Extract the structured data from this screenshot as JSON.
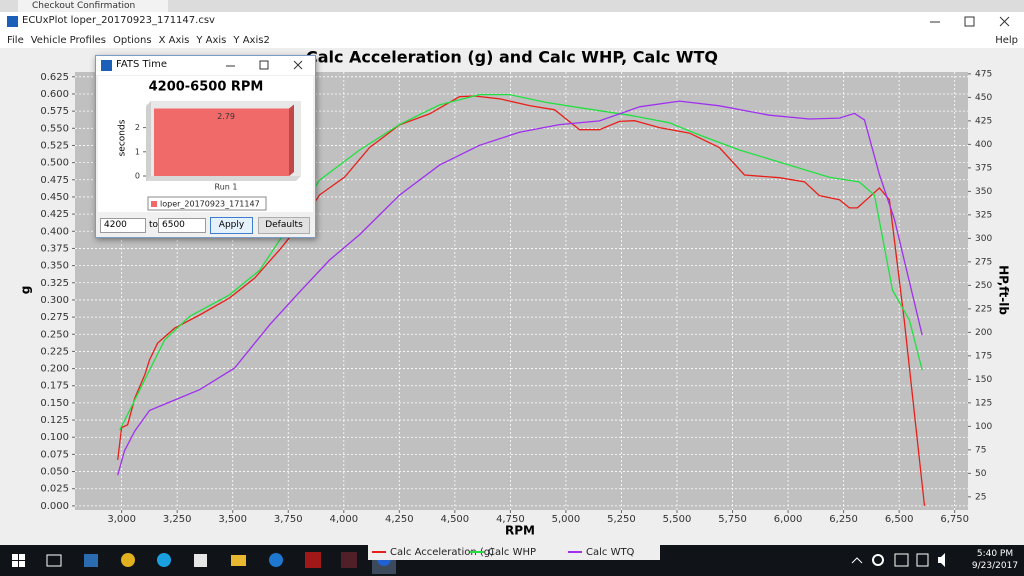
{
  "window": {
    "tab": "Checkout Confirmation",
    "title": "ECUxPlot loper_20170923_171147.csv"
  },
  "menu": [
    "File",
    "Vehicle Profiles",
    "Options",
    "X Axis",
    "Y Axis",
    "Y Axis2",
    "Help"
  ],
  "dialog": {
    "title": "FATS Time",
    "from": "4200",
    "to_label": "to",
    "to": "6500",
    "apply": "Apply",
    "defaults": "Defaults"
  },
  "taskbar": {
    "time": "5:40 PM",
    "date": "9/23/2017"
  },
  "chart_data": [
    {
      "type": "line",
      "title": "Calc Acceleration (g) and Calc WHP, Calc WTQ",
      "xlabel": "RPM",
      "ylabel": "g",
      "y2label": "HP,ft-lb",
      "grid": true,
      "xlim": [
        2790,
        6810
      ],
      "ylim": [
        -0.006,
        0.632
      ],
      "y2lim": [
        11,
        477
      ],
      "xticks": [
        {
          "value": 3000,
          "label": "3,000"
        },
        {
          "value": 3250,
          "label": "3,250"
        },
        {
          "value": 3500,
          "label": "3,500"
        },
        {
          "value": 3750,
          "label": "3,750"
        },
        {
          "value": 4000,
          "label": "4,000"
        },
        {
          "value": 4250,
          "label": "4,250"
        },
        {
          "value": 4500,
          "label": "4,500"
        },
        {
          "value": 4750,
          "label": "4,750"
        },
        {
          "value": 5000,
          "label": "5,000"
        },
        {
          "value": 5250,
          "label": "5,250"
        },
        {
          "value": 5500,
          "label": "5,500"
        },
        {
          "value": 5750,
          "label": "5,750"
        },
        {
          "value": 6000,
          "label": "6,000"
        },
        {
          "value": 6250,
          "label": "6,250"
        },
        {
          "value": 6500,
          "label": "6,500"
        },
        {
          "value": 6750,
          "label": "6,750"
        }
      ],
      "yticks": [
        {
          "value": 0,
          "label": "0.000"
        },
        {
          "value": 0.025,
          "label": "0.025"
        },
        {
          "value": 0.05,
          "label": "0.050"
        },
        {
          "value": 0.075,
          "label": "0.075"
        },
        {
          "value": 0.1,
          "label": "0.100"
        },
        {
          "value": 0.125,
          "label": "0.125"
        },
        {
          "value": 0.15,
          "label": "0.150"
        },
        {
          "value": 0.175,
          "label": "0.175"
        },
        {
          "value": 0.2,
          "label": "0.200"
        },
        {
          "value": 0.225,
          "label": "0.225"
        },
        {
          "value": 0.25,
          "label": "0.250"
        },
        {
          "value": 0.275,
          "label": "0.275"
        },
        {
          "value": 0.3,
          "label": "0.300"
        },
        {
          "value": 0.325,
          "label": "0.325"
        },
        {
          "value": 0.35,
          "label": "0.350"
        },
        {
          "value": 0.375,
          "label": "0.375"
        },
        {
          "value": 0.4,
          "label": "0.400"
        },
        {
          "value": 0.425,
          "label": "0.425"
        },
        {
          "value": 0.45,
          "label": "0.450"
        },
        {
          "value": 0.475,
          "label": "0.475"
        },
        {
          "value": 0.5,
          "label": "0.500"
        },
        {
          "value": 0.525,
          "label": "0.525"
        },
        {
          "value": 0.55,
          "label": "0.550"
        },
        {
          "value": 0.575,
          "label": "0.575"
        },
        {
          "value": 0.6,
          "label": "0.600"
        },
        {
          "value": 0.625,
          "label": "0.625"
        }
      ],
      "y2ticks": [
        25,
        50,
        75,
        100,
        125,
        150,
        175,
        200,
        225,
        250,
        275,
        300,
        325,
        350,
        375,
        400,
        425,
        450,
        475
      ],
      "series": [
        {
          "name": "Calc Acceleration (g)",
          "color": "#e8201a",
          "x": [
            2982,
            3000,
            3027,
            3059,
            3104,
            3126,
            3162,
            3239,
            3351,
            3486,
            3599,
            3711,
            3801,
            3891,
            4004,
            4116,
            4251,
            4386,
            4521,
            4589,
            4701,
            4836,
            4949,
            5061,
            5151,
            5241,
            5309,
            5421,
            5556,
            5691,
            5804,
            5961,
            6074,
            6141,
            6231,
            6276,
            6312,
            6411,
            6456,
            6523,
            6614
          ],
          "values": [
            0.067,
            0.114,
            0.118,
            0.157,
            0.191,
            0.213,
            0.237,
            0.259,
            0.278,
            0.303,
            0.332,
            0.373,
            0.409,
            0.453,
            0.479,
            0.522,
            0.555,
            0.571,
            0.596,
            0.597,
            0.593,
            0.583,
            0.577,
            0.548,
            0.548,
            0.56,
            0.561,
            0.551,
            0.543,
            0.522,
            0.482,
            0.478,
            0.472,
            0.452,
            0.446,
            0.434,
            0.434,
            0.463,
            0.446,
            0.271,
            0.0
          ]
        },
        {
          "name": "Calc WHP",
          "color": "#22e040",
          "axis": "y2",
          "x": [
            2991,
            3036,
            3126,
            3194,
            3306,
            3486,
            3621,
            3756,
            3891,
            4071,
            4251,
            4431,
            4611,
            4746,
            4904,
            5061,
            5286,
            5466,
            5601,
            5781,
            6006,
            6186,
            6321,
            6389,
            6470,
            6546,
            6604
          ],
          "values": [
            96,
            117,
            160,
            192,
            217,
            240,
            266,
            314,
            362,
            394,
            421,
            442,
            453,
            453,
            445,
            439,
            431,
            423,
            410,
            394,
            378,
            365,
            360,
            346,
            245,
            213,
            160
          ]
        },
        {
          "name": "Calc WTQ",
          "color": "#a030f0",
          "axis": "y2",
          "x": [
            2982,
            3013,
            3059,
            3126,
            3239,
            3351,
            3508,
            3666,
            3801,
            3936,
            4071,
            4251,
            4431,
            4611,
            4791,
            4971,
            5151,
            5331,
            5511,
            5691,
            5916,
            6096,
            6231,
            6299,
            6344,
            6411,
            6479,
            6604
          ],
          "values": [
            48,
            74,
            95,
            117,
            128,
            139,
            162,
            208,
            243,
            277,
            304,
            346,
            378,
            399,
            413,
            421,
            425,
            440,
            446,
            441,
            431,
            427,
            428,
            433,
            426,
            368,
            320,
            197
          ]
        }
      ]
    },
    {
      "type": "bar",
      "title": "4200-6500 RPM",
      "ylabel": "seconds",
      "categories": [
        "Run 1"
      ],
      "ylim": [
        0,
        3.1
      ],
      "yticks": [
        0,
        1,
        2
      ],
      "series": [
        {
          "name": "loper_20170923_171147",
          "color": "#f06a6a",
          "values": [
            2.79
          ]
        }
      ]
    }
  ]
}
